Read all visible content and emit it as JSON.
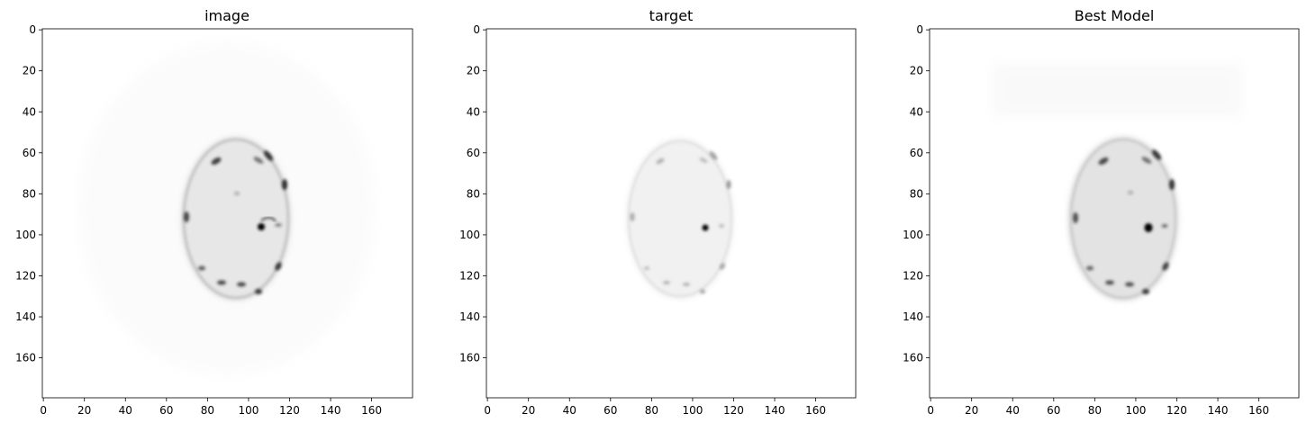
{
  "figure": {
    "panels": [
      {
        "title": "image"
      },
      {
        "title": "target"
      },
      {
        "title": "Best Model"
      }
    ],
    "x_ticks": [
      "0",
      "20",
      "40",
      "60",
      "80",
      "100",
      "120",
      "140",
      "160"
    ],
    "y_ticks": [
      "0",
      "20",
      "40",
      "60",
      "80",
      "100",
      "120",
      "140",
      "160"
    ],
    "image_size": 180,
    "colormap": "gray_r"
  }
}
